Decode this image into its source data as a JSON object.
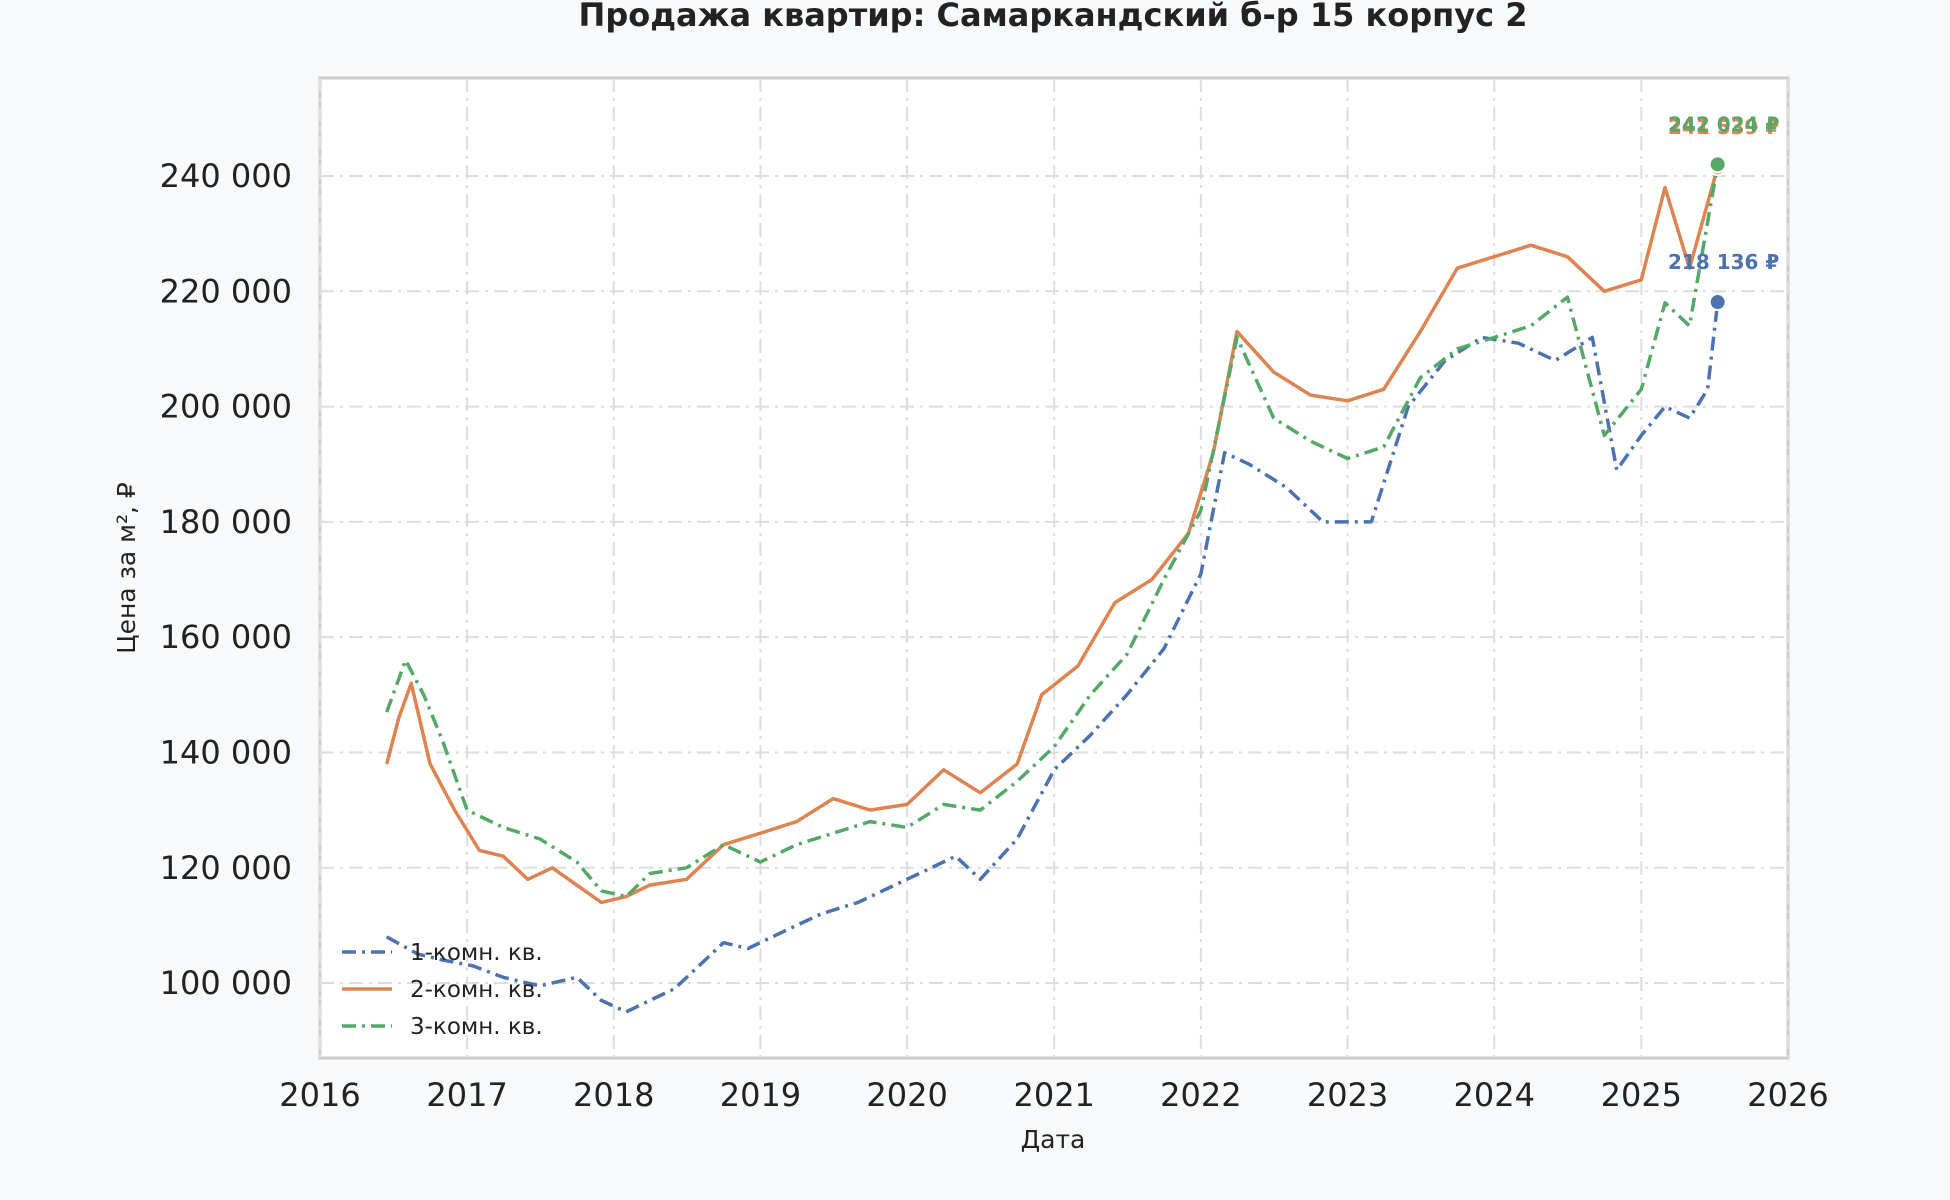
{
  "chart_data": {
    "type": "line",
    "title": "Продажа квартир: Самаркандский б-р 15 корпус 2",
    "xlabel": "Дата",
    "ylabel": "Цена за м², ₽",
    "xlim": [
      "2016-01-01",
      "2026-01-01"
    ],
    "ylim": [
      87000,
      257000
    ],
    "x_ticks": [
      "2016",
      "2017",
      "2018",
      "2019",
      "2020",
      "2021",
      "2022",
      "2023",
      "2024",
      "2025",
      "2026"
    ],
    "y_ticks": [
      {
        "value": 100000,
        "label": "100 000"
      },
      {
        "value": 120000,
        "label": "120 000"
      },
      {
        "value": 140000,
        "label": "140 000"
      },
      {
        "value": 160000,
        "label": "160 000"
      },
      {
        "value": 180000,
        "label": "180 000"
      },
      {
        "value": 200000,
        "label": "200 000"
      },
      {
        "value": 220000,
        "label": "220 000"
      },
      {
        "value": 240000,
        "label": "240 000"
      }
    ],
    "grid": true,
    "legend_position": "lower-left",
    "series": [
      {
        "name": "1-комн. кв.",
        "color": "#4c72b0",
        "dash": "dashdot",
        "end_label": "218 136 ₽",
        "end_value": 218136,
        "points": [
          [
            "2016-06-15",
            108000
          ],
          [
            "2016-09-01",
            105000
          ],
          [
            "2016-11-01",
            104000
          ],
          [
            "2017-01-15",
            103000
          ],
          [
            "2017-04-01",
            101000
          ],
          [
            "2017-07-01",
            99500
          ],
          [
            "2017-10-01",
            101000
          ],
          [
            "2017-12-01",
            97000
          ],
          [
            "2018-02-01",
            95000
          ],
          [
            "2018-04-01",
            97000
          ],
          [
            "2018-06-01",
            99000
          ],
          [
            "2018-08-01",
            103000
          ],
          [
            "2018-10-01",
            107000
          ],
          [
            "2018-12-01",
            106000
          ],
          [
            "2019-03-01",
            109000
          ],
          [
            "2019-06-01",
            112000
          ],
          [
            "2019-09-01",
            114000
          ],
          [
            "2019-12-01",
            117000
          ],
          [
            "2020-03-01",
            120000
          ],
          [
            "2020-05-01",
            122000
          ],
          [
            "2020-07-01",
            118000
          ],
          [
            "2020-10-01",
            125000
          ],
          [
            "2021-01-01",
            137000
          ],
          [
            "2021-04-01",
            143000
          ],
          [
            "2021-07-01",
            150000
          ],
          [
            "2021-10-01",
            158000
          ],
          [
            "2022-01-01",
            171000
          ],
          [
            "2022-03-01",
            192000
          ],
          [
            "2022-05-01",
            190000
          ],
          [
            "2022-08-01",
            186000
          ],
          [
            "2022-11-01",
            180000
          ],
          [
            "2023-03-01",
            180000
          ],
          [
            "2023-06-01",
            200000
          ],
          [
            "2023-09-01",
            208000
          ],
          [
            "2023-12-01",
            212000
          ],
          [
            "2024-03-01",
            211000
          ],
          [
            "2024-06-01",
            208000
          ],
          [
            "2024-09-01",
            212000
          ],
          [
            "2024-11-01",
            189000
          ],
          [
            "2025-01-01",
            195000
          ],
          [
            "2025-03-01",
            200000
          ],
          [
            "2025-05-01",
            198000
          ],
          [
            "2025-06-15",
            203000
          ],
          [
            "2025-07-10",
            218136
          ]
        ]
      },
      {
        "name": "2-комн. кв.",
        "color": "#dd8452",
        "dash": "solid",
        "end_label": "241 539 ₽",
        "end_value": 241539,
        "points": [
          [
            "2016-06-15",
            138000
          ],
          [
            "2016-07-15",
            146000
          ],
          [
            "2016-08-15",
            152000
          ],
          [
            "2016-10-01",
            138000
          ],
          [
            "2016-12-01",
            130000
          ],
          [
            "2017-02-01",
            123000
          ],
          [
            "2017-04-01",
            122000
          ],
          [
            "2017-06-01",
            118000
          ],
          [
            "2017-08-01",
            120000
          ],
          [
            "2017-10-01",
            117000
          ],
          [
            "2017-12-01",
            114000
          ],
          [
            "2018-02-01",
            115000
          ],
          [
            "2018-04-01",
            117000
          ],
          [
            "2018-07-01",
            118000
          ],
          [
            "2018-10-01",
            124000
          ],
          [
            "2019-01-01",
            126000
          ],
          [
            "2019-04-01",
            128000
          ],
          [
            "2019-07-01",
            132000
          ],
          [
            "2019-10-01",
            130000
          ],
          [
            "2020-01-01",
            131000
          ],
          [
            "2020-04-01",
            137000
          ],
          [
            "2020-07-01",
            133000
          ],
          [
            "2020-10-01",
            138000
          ],
          [
            "2020-12-01",
            150000
          ],
          [
            "2021-03-01",
            155000
          ],
          [
            "2021-06-01",
            166000
          ],
          [
            "2021-09-01",
            170000
          ],
          [
            "2021-12-01",
            178000
          ],
          [
            "2022-02-01",
            192000
          ],
          [
            "2022-04-01",
            213000
          ],
          [
            "2022-07-01",
            206000
          ],
          [
            "2022-10-01",
            202000
          ],
          [
            "2023-01-01",
            201000
          ],
          [
            "2023-04-01",
            203000
          ],
          [
            "2023-07-01",
            213000
          ],
          [
            "2023-10-01",
            224000
          ],
          [
            "2024-01-01",
            226000
          ],
          [
            "2024-04-01",
            228000
          ],
          [
            "2024-07-01",
            226000
          ],
          [
            "2024-10-01",
            220000
          ],
          [
            "2025-01-01",
            222000
          ],
          [
            "2025-03-01",
            238000
          ],
          [
            "2025-05-01",
            224000
          ],
          [
            "2025-07-10",
            241539
          ]
        ]
      },
      {
        "name": "3-комн. кв.",
        "color": "#55a868",
        "dash": "dashdot",
        "end_label": "242 024 ₽",
        "end_value": 242024,
        "points": [
          [
            "2016-06-15",
            147000
          ],
          [
            "2016-08-01",
            156000
          ],
          [
            "2016-09-15",
            150000
          ],
          [
            "2016-11-01",
            142000
          ],
          [
            "2017-01-01",
            130000
          ],
          [
            "2017-04-01",
            127000
          ],
          [
            "2017-07-01",
            125000
          ],
          [
            "2017-10-01",
            121000
          ],
          [
            "2017-12-01",
            116000
          ],
          [
            "2018-02-01",
            115000
          ],
          [
            "2018-04-01",
            119000
          ],
          [
            "2018-07-01",
            120000
          ],
          [
            "2018-10-01",
            124000
          ],
          [
            "2019-01-01",
            121000
          ],
          [
            "2019-04-01",
            124000
          ],
          [
            "2019-07-01",
            126000
          ],
          [
            "2019-10-01",
            128000
          ],
          [
            "2020-01-01",
            127000
          ],
          [
            "2020-04-01",
            131000
          ],
          [
            "2020-07-01",
            130000
          ],
          [
            "2020-10-01",
            135000
          ],
          [
            "2021-01-01",
            141000
          ],
          [
            "2021-04-01",
            150000
          ],
          [
            "2021-07-01",
            157000
          ],
          [
            "2021-10-01",
            170000
          ],
          [
            "2022-01-01",
            182000
          ],
          [
            "2022-04-01",
            212000
          ],
          [
            "2022-07-01",
            198000
          ],
          [
            "2022-10-01",
            194000
          ],
          [
            "2023-01-01",
            191000
          ],
          [
            "2023-04-01",
            193000
          ],
          [
            "2023-07-01",
            205000
          ],
          [
            "2023-10-01",
            210000
          ],
          [
            "2024-01-01",
            212000
          ],
          [
            "2024-04-01",
            214000
          ],
          [
            "2024-07-01",
            219000
          ],
          [
            "2024-10-01",
            195000
          ],
          [
            "2025-01-01",
            203000
          ],
          [
            "2025-03-01",
            218000
          ],
          [
            "2025-05-01",
            214000
          ],
          [
            "2025-07-10",
            242024
          ]
        ]
      }
    ]
  }
}
